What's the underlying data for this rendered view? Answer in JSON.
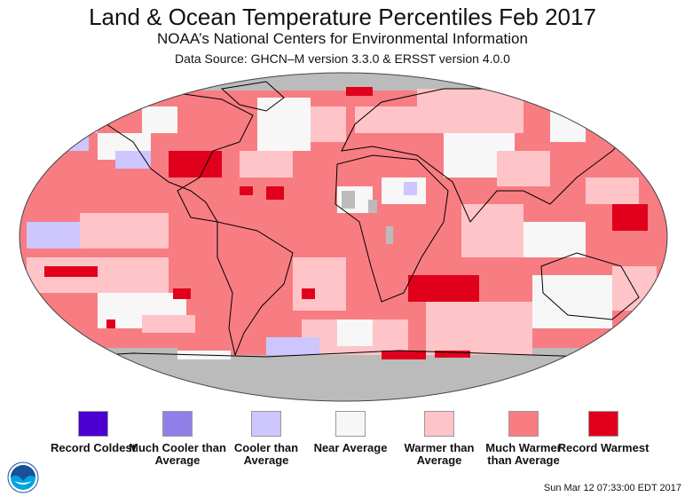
{
  "header": {
    "title": "Land & Ocean Temperature Percentiles Feb 2017",
    "subtitle": "NOAA’s National Centers for Environmental Information",
    "data_source": "Data Source: GHCN–M version 3.3.0 & ERSST version 4.0.0"
  },
  "map": {
    "projection": "Robinson",
    "missing_color": "#bbbbbb"
  },
  "legend": [
    {
      "label": "Record Coldest",
      "color": "#4b00d1"
    },
    {
      "label": "Much Cooler than Average",
      "color": "#907fe8"
    },
    {
      "label": "Cooler than Average",
      "color": "#cdc6ff"
    },
    {
      "label": "Near Average",
      "color": "#f7f7f7"
    },
    {
      "label": "Warmer than Average",
      "color": "#ffc4c8"
    },
    {
      "label": "Much Warmer than Average",
      "color": "#f77d83"
    },
    {
      "label": "Record Warmest",
      "color": "#e0001b"
    }
  ],
  "footer": {
    "timestamp": "Sun Mar 12 07:33:00 EDT 2017",
    "logo_text": "NOAA"
  }
}
